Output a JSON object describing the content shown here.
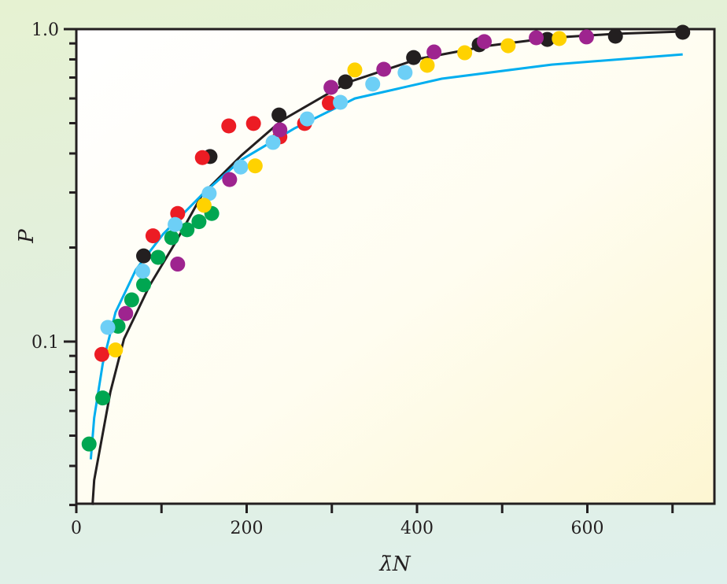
{
  "chart_data": {
    "type": "scatter",
    "xlabel": "λ̄N",
    "ylabel": "P",
    "xlim": [
      0,
      750
    ],
    "ylim": [
      0.03,
      1.0
    ],
    "yscale": "log",
    "grid": false,
    "x_ticks": [
      0,
      200,
      400,
      600
    ],
    "x_minor_ticks": [
      100,
      300,
      500,
      700
    ],
    "x_tick_labels": [
      "0",
      "200",
      "400",
      "600"
    ],
    "y_ticks": [
      0.1,
      1.0
    ],
    "y_tick_labels": [
      "0.1",
      "1.0"
    ],
    "y_minor_ticks": [
      0.03,
      0.04,
      0.05,
      0.06,
      0.07,
      0.08,
      0.09,
      0.2,
      0.3,
      0.4,
      0.5,
      0.6,
      0.7,
      0.8,
      0.9
    ],
    "colors": {
      "background_plot_start": "#ffffff",
      "background_plot_end": "#fdf7d4",
      "axis": "#231f20"
    },
    "series": [
      {
        "color": "#231f20",
        "x": [
          79,
          157,
          238,
          316,
          396,
          473,
          553,
          633,
          712
        ],
        "y": [
          0.188,
          0.391,
          0.531,
          0.678,
          0.811,
          0.891,
          0.927,
          0.949,
          0.977
        ]
      },
      {
        "color": "#ec1c24",
        "x": [
          30,
          90,
          119,
          148,
          179,
          208,
          239,
          268,
          297
        ],
        "y": [
          0.091,
          0.218,
          0.257,
          0.388,
          0.49,
          0.499,
          0.452,
          0.499,
          0.58
        ]
      },
      {
        "color": "#00a651",
        "x": [
          15,
          31,
          49,
          65,
          79,
          96,
          112,
          130,
          144,
          159
        ],
        "y": [
          0.047,
          0.066,
          0.112,
          0.136,
          0.152,
          0.186,
          0.215,
          0.228,
          0.242,
          0.257
        ]
      },
      {
        "color": "#6dcff6",
        "x": [
          37,
          78,
          116,
          156,
          193,
          231,
          271,
          310,
          348,
          386
        ],
        "y": [
          0.111,
          0.168,
          0.237,
          0.298,
          0.362,
          0.434,
          0.516,
          0.583,
          0.667,
          0.726
        ]
      },
      {
        "color": "#9e248f",
        "x": [
          58,
          119,
          180,
          239,
          299,
          361,
          420,
          479,
          540,
          599
        ],
        "y": [
          0.123,
          0.177,
          0.33,
          0.476,
          0.651,
          0.744,
          0.845,
          0.912,
          0.938,
          0.944
        ]
      },
      {
        "color": "#ffd200",
        "x": [
          46,
          150,
          210,
          327,
          412,
          456,
          507,
          567
        ],
        "y": [
          0.094,
          0.273,
          0.365,
          0.74,
          0.766,
          0.84,
          0.885,
          0.933
        ]
      }
    ],
    "curves": [
      {
        "color": "#231f20",
        "x": [
          19,
          21,
          40,
          56,
          86,
          117,
          148,
          194,
          241,
          318,
          401,
          484,
          558,
          632,
          712
        ],
        "y": [
          0.03,
          0.036,
          0.069,
          0.102,
          0.151,
          0.209,
          0.296,
          0.395,
          0.51,
          0.674,
          0.802,
          0.885,
          0.938,
          0.966,
          0.983
        ]
      },
      {
        "color": "#00aeef",
        "x": [
          17,
          21,
          31,
          46,
          70,
          102,
          148,
          194,
          256,
          327,
          429,
          558,
          712
        ],
        "y": [
          0.042,
          0.057,
          0.085,
          0.124,
          0.17,
          0.221,
          0.296,
          0.382,
          0.481,
          0.6,
          0.694,
          0.77,
          0.83
        ]
      }
    ]
  }
}
